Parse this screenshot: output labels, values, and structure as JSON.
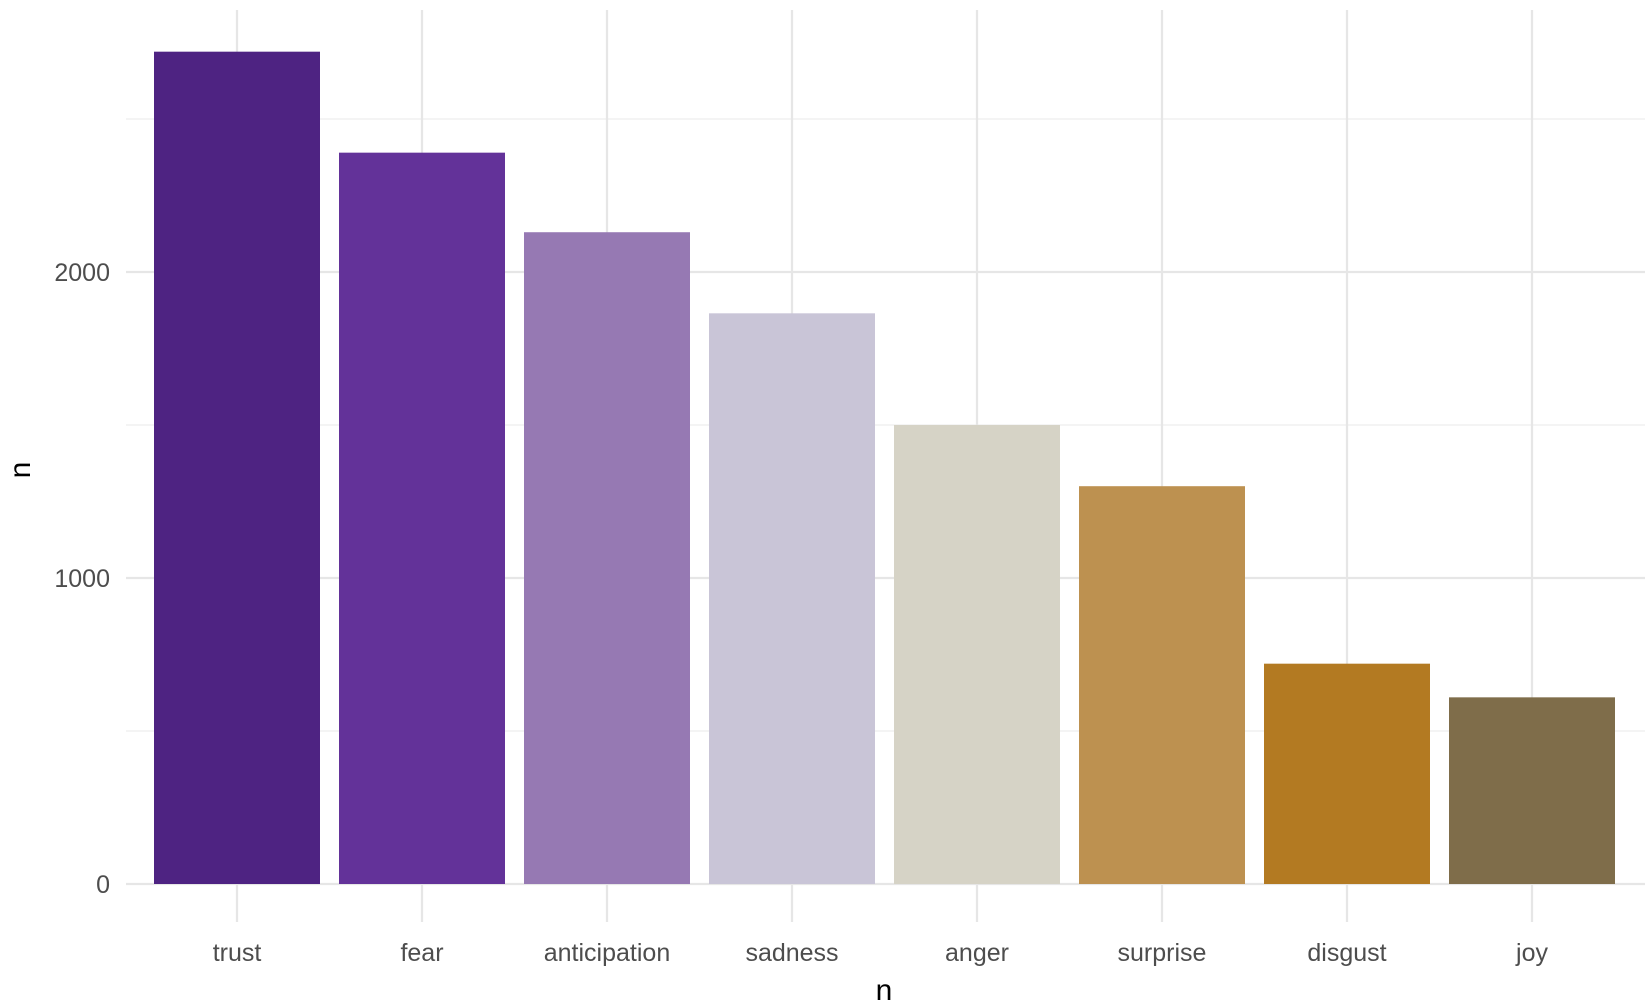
{
  "chart_data": {
    "type": "bar",
    "title": "",
    "xlabel": "n",
    "ylabel": "n",
    "categories": [
      "trust",
      "fear",
      "anticipation",
      "sadness",
      "anger",
      "surprise",
      "disgust",
      "joy"
    ],
    "values": [
      2720,
      2390,
      2130,
      1865,
      1500,
      1300,
      720,
      610
    ],
    "colors": [
      "#4e2382",
      "#633299",
      "#9679b3",
      "#c9c5d7",
      "#d6d3c6",
      "#bd9150",
      "#b37a22",
      "#7f6d4a"
    ],
    "ylim": [
      0,
      2840
    ],
    "yticks": [
      0,
      1000,
      2000
    ],
    "ytick_labels": [
      "0",
      "1000",
      "2000"
    ],
    "grid": true,
    "legend": "none"
  }
}
